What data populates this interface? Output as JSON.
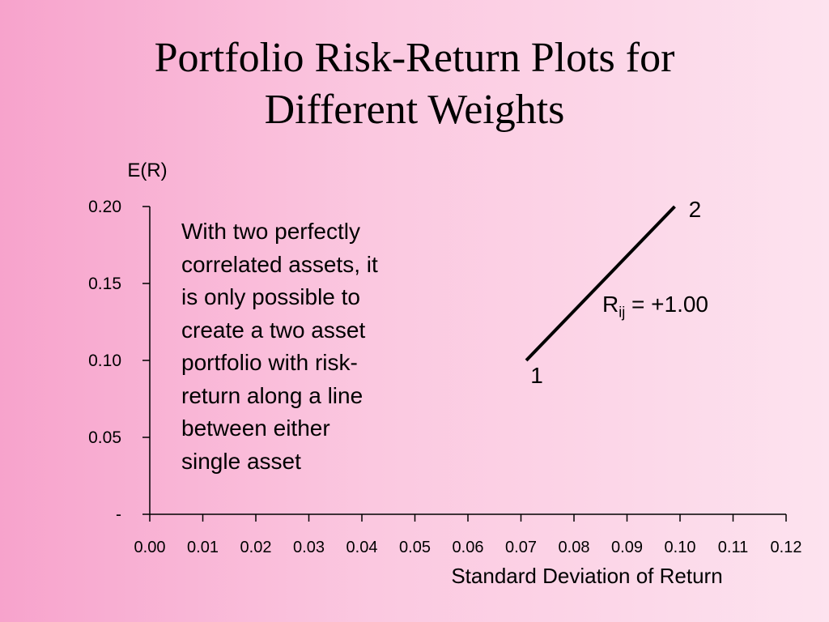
{
  "slide": {
    "title_lines": [
      "Portfolio Risk-Return Plots for",
      "Different Weights"
    ],
    "annotation_lines": [
      "With two perfectly",
      "correlated assets, it",
      "is only possible to",
      "create a two asset",
      "portfolio with risk-",
      "return along a line",
      "between either",
      "single asset"
    ],
    "correlation": {
      "symbol": "R",
      "subscript": "ij",
      "value": " = +1.00"
    }
  },
  "chart_data": {
    "type": "line",
    "xlabel": "Standard Deviation of Return",
    "ylabel": "E(R)",
    "xlim": [
      0,
      0.12
    ],
    "ylim": [
      0,
      0.2
    ],
    "x_ticks": [
      "0.00",
      "0.01",
      "0.02",
      "0.03",
      "0.04",
      "0.05",
      "0.06",
      "0.07",
      "0.08",
      "0.09",
      "0.10",
      "0.11",
      "0.12"
    ],
    "y_ticks": [
      {
        "value": 0,
        "label": "-"
      },
      {
        "value": 0.05,
        "label": "0.05"
      },
      {
        "value": 0.1,
        "label": "0.10"
      },
      {
        "value": 0.15,
        "label": "0.15"
      },
      {
        "value": 0.2,
        "label": "0.20"
      }
    ],
    "grid": false,
    "series": [
      {
        "points": [
          {
            "x": 0.071,
            "y": 0.1,
            "label": "1"
          },
          {
            "x": 0.099,
            "y": 0.2,
            "label": "2"
          }
        ],
        "color": "#000000"
      }
    ]
  }
}
